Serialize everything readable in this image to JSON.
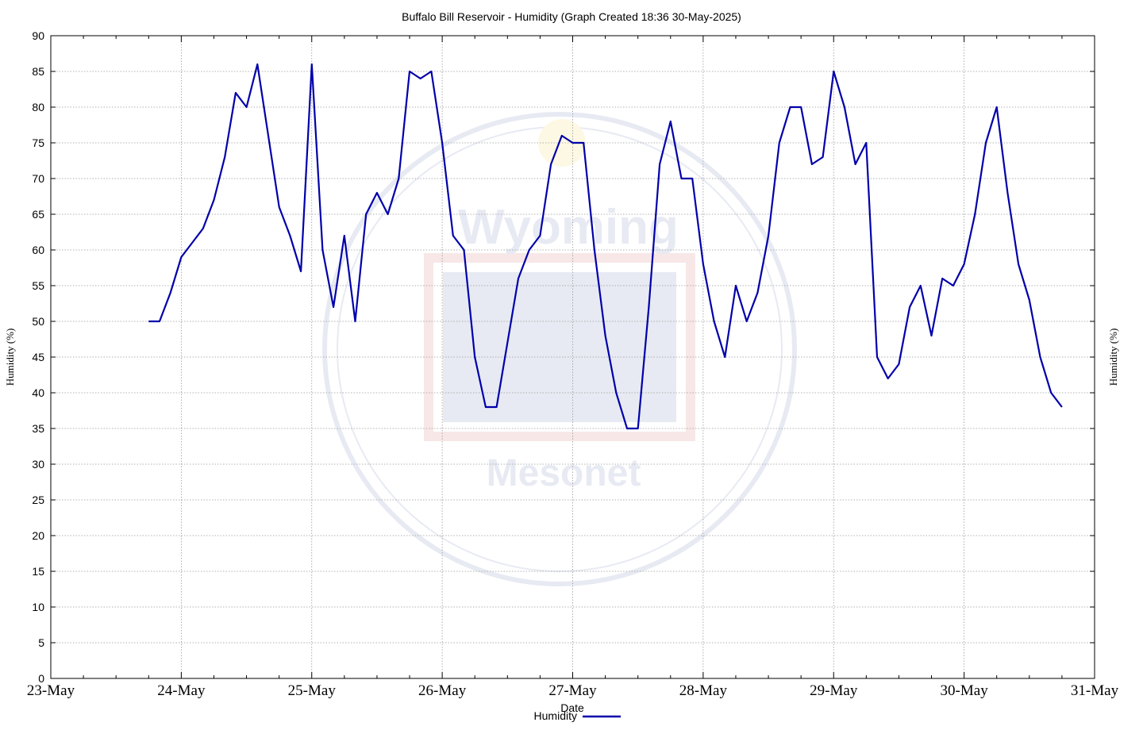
{
  "chart_data": {
    "type": "line",
    "title": "Buffalo Bill Reservoir - Humidity (Graph Created 18:36 30-May-2025)",
    "xlabel": "Date",
    "ylabel": "Humidity (%)",
    "ylabel_right": "Humidity (%)",
    "x_ticks": [
      "23-May",
      "24-May",
      "25-May",
      "26-May",
      "27-May",
      "28-May",
      "29-May",
      "30-May",
      "31-May"
    ],
    "y_ticks": [
      0,
      5,
      10,
      15,
      20,
      25,
      30,
      35,
      40,
      45,
      50,
      55,
      60,
      65,
      70,
      75,
      80,
      85,
      90
    ],
    "xlim": [
      "2025-05-23 00:00",
      "2025-05-31 00:00"
    ],
    "ylim": [
      0,
      90
    ],
    "grid": true,
    "legend_position": "bottom-center",
    "watermark": "Wyoming Mesonet",
    "series": [
      {
        "name": "Humidity",
        "color": "#0000aa",
        "x": [
          "2025-05-23 18:00",
          "2025-05-23 20:00",
          "2025-05-23 22:00",
          "2025-05-24 00:00",
          "2025-05-24 02:00",
          "2025-05-24 04:00",
          "2025-05-24 06:00",
          "2025-05-24 08:00",
          "2025-05-24 10:00",
          "2025-05-24 12:00",
          "2025-05-24 14:00",
          "2025-05-24 16:00",
          "2025-05-24 18:00",
          "2025-05-24 20:00",
          "2025-05-24 22:00",
          "2025-05-25 00:00",
          "2025-05-25 02:00",
          "2025-05-25 04:00",
          "2025-05-25 06:00",
          "2025-05-25 08:00",
          "2025-05-25 10:00",
          "2025-05-25 12:00",
          "2025-05-25 14:00",
          "2025-05-25 16:00",
          "2025-05-25 18:00",
          "2025-05-25 20:00",
          "2025-05-25 22:00",
          "2025-05-26 00:00",
          "2025-05-26 02:00",
          "2025-05-26 04:00",
          "2025-05-26 06:00",
          "2025-05-26 08:00",
          "2025-05-26 10:00",
          "2025-05-26 12:00",
          "2025-05-26 14:00",
          "2025-05-26 16:00",
          "2025-05-26 18:00",
          "2025-05-26 20:00",
          "2025-05-26 22:00",
          "2025-05-27 00:00",
          "2025-05-27 02:00",
          "2025-05-27 04:00",
          "2025-05-27 06:00",
          "2025-05-27 08:00",
          "2025-05-27 10:00",
          "2025-05-27 12:00",
          "2025-05-27 14:00",
          "2025-05-27 16:00",
          "2025-05-27 18:00",
          "2025-05-27 20:00",
          "2025-05-27 22:00",
          "2025-05-28 00:00",
          "2025-05-28 02:00",
          "2025-05-28 04:00",
          "2025-05-28 06:00",
          "2025-05-28 08:00",
          "2025-05-28 10:00",
          "2025-05-28 12:00",
          "2025-05-28 14:00",
          "2025-05-28 16:00",
          "2025-05-28 18:00",
          "2025-05-28 20:00",
          "2025-05-28 22:00",
          "2025-05-29 00:00",
          "2025-05-29 02:00",
          "2025-05-29 04:00",
          "2025-05-29 06:00",
          "2025-05-29 08:00",
          "2025-05-29 10:00",
          "2025-05-29 12:00",
          "2025-05-29 14:00",
          "2025-05-29 16:00",
          "2025-05-29 18:00",
          "2025-05-29 20:00",
          "2025-05-29 22:00",
          "2025-05-30 00:00",
          "2025-05-30 02:00",
          "2025-05-30 04:00",
          "2025-05-30 06:00",
          "2025-05-30 08:00",
          "2025-05-30 10:00",
          "2025-05-30 12:00",
          "2025-05-30 14:00",
          "2025-05-30 16:00",
          "2025-05-30 18:00"
        ],
        "values": [
          50,
          50,
          54,
          59,
          61,
          63,
          67,
          73,
          82,
          80,
          86,
          76,
          66,
          62,
          57,
          86,
          60,
          52,
          62,
          50,
          65,
          68,
          65,
          70,
          85,
          84,
          85,
          75,
          62,
          60,
          45,
          38,
          38,
          47,
          56,
          60,
          62,
          72,
          76,
          75,
          75,
          60,
          48,
          40,
          35,
          35,
          52,
          72,
          78,
          70,
          70,
          58,
          50,
          45,
          55,
          50,
          54,
          62,
          75,
          80,
          80,
          72,
          73,
          85,
          80,
          72,
          75,
          45,
          42,
          44,
          52,
          55,
          48,
          56,
          55,
          58,
          65,
          75,
          80,
          68,
          58,
          53,
          45,
          40,
          38
        ]
      }
    ]
  }
}
